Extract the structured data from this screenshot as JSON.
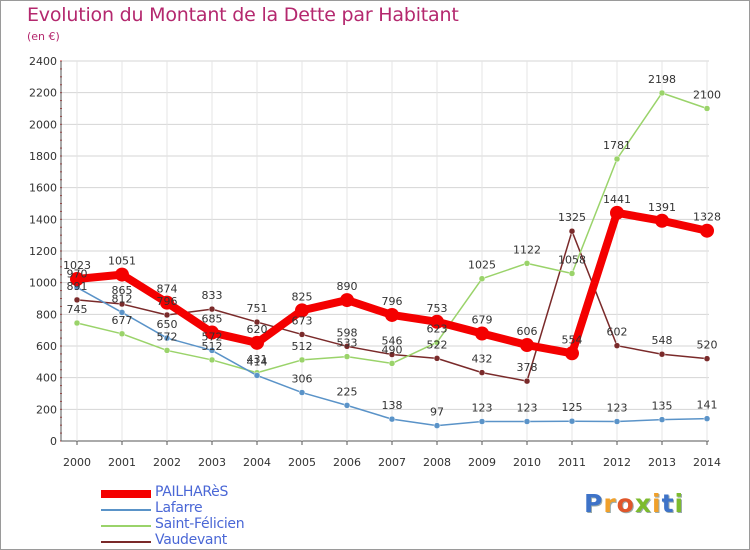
{
  "title": "Evolution du Montant de la Dette par Habitant",
  "unit_label": "(en €)",
  "logo": {
    "text": "Proxiti",
    "letter_colors": [
      "#3e73c8",
      "#f0a02a",
      "#e0562a",
      "#7dbb2e",
      "#f0a02a",
      "#3e73c8",
      "#7dbb2e"
    ]
  },
  "chart_data": {
    "type": "line",
    "x": [
      "2000",
      "2001",
      "2002",
      "2003",
      "2004",
      "2005",
      "2006",
      "2007",
      "2008",
      "2009",
      "2010",
      "2011",
      "2012",
      "2013",
      "2014"
    ],
    "ylim": [
      0,
      2400
    ],
    "yticks": [
      "0",
      "200",
      "400",
      "600",
      "800",
      "1000",
      "1200",
      "1400",
      "1600",
      "1800",
      "2000",
      "2200",
      "2400"
    ],
    "grid": true,
    "legend_position": "bottom-left",
    "series": [
      {
        "name": "Vaudevant",
        "color": "#7a2a2a",
        "values": [
          891,
          865,
          796,
          833,
          751,
          673,
          598,
          546,
          522,
          432,
          378,
          1325,
          602,
          548,
          520
        ],
        "labels": [
          "891",
          "865",
          "796",
          "833",
          "751",
          "673",
          "598",
          "546",
          "522",
          "432",
          "378",
          "1325",
          "602",
          "548",
          "520"
        ]
      },
      {
        "name": "Saint-Félicien",
        "color": "#9ad36a",
        "values": [
          745,
          677,
          572,
          512,
          431,
          512,
          533,
          490,
          623,
          1025,
          1122,
          1058,
          1781,
          2198,
          2100
        ],
        "labels": [
          "745",
          "677",
          "572",
          "512",
          "431",
          "512",
          "533",
          "490",
          "623",
          "1025",
          "1122",
          "1058",
          "1781",
          "2198",
          "2100"
        ]
      },
      {
        "name": "Lafarre",
        "color": "#5a93c8",
        "values": [
          970,
          812,
          650,
          572,
          414,
          306,
          225,
          138,
          97,
          123,
          123,
          125,
          123,
          135,
          141
        ],
        "labels": [
          "970",
          "812",
          "650",
          "572",
          "414",
          "306",
          "225",
          "138",
          "97",
          "123",
          "123",
          "125",
          "123",
          "135",
          "141"
        ]
      },
      {
        "name": "PAILHARèS",
        "color": "#f40000",
        "values": [
          1023,
          1051,
          874,
          685,
          620,
          825,
          890,
          796,
          753,
          679,
          606,
          554,
          1441,
          1391,
          1328
        ],
        "labels": [
          "1023",
          "1051",
          "874",
          "685",
          "620",
          "825",
          "890",
          "796",
          "753",
          "679",
          "606",
          "554",
          "1441",
          "1391",
          "1328"
        ]
      }
    ],
    "legend_order": [
      "PAILHARèS",
      "Lafarre",
      "Saint-Félicien",
      "Vaudevant"
    ]
  }
}
